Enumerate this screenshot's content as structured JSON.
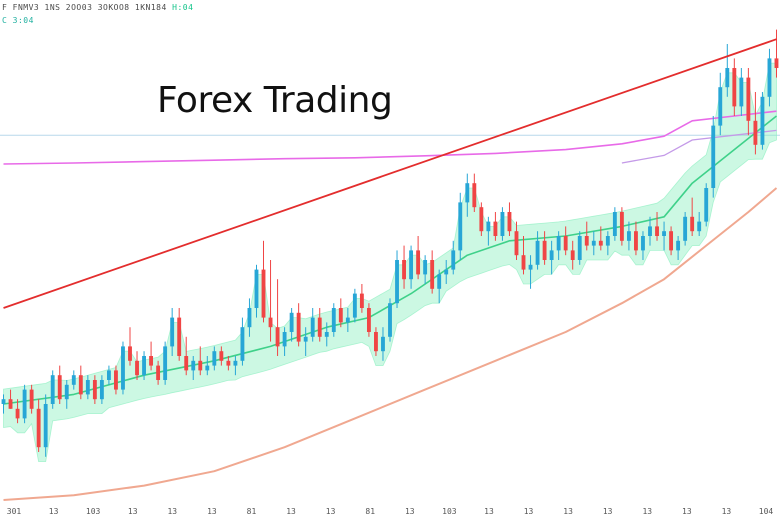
{
  "header": {
    "line1": "F FNMV3  1NS 2OO03  3OKOO8  1KN184",
    "line1_status": "H:04",
    "line2": "C  3:04"
  },
  "colors": {
    "bull": "#27a6d6",
    "bear": "#f04545",
    "trendline": "#e32d2d",
    "slow_ma": "#e86ae8",
    "mid_ma": "#c49ae8",
    "fast_ma": "#3fd18a",
    "envelope": "#8ff0c2",
    "lower_band": "#f0a890",
    "reference": "#b8d8ec"
  },
  "chart_data": {
    "type": "candlestick",
    "title": "Forex Trading",
    "xlabel": "",
    "ylabel": "",
    "x_tick_labels": [
      "301",
      "13",
      "103",
      "13",
      "13",
      "13",
      "81",
      "13",
      "13",
      "81",
      "13",
      "103",
      "13",
      "13",
      "13",
      "13",
      "13",
      "13",
      "13",
      "104"
    ],
    "ylim": [
      0,
      100
    ],
    "grid": false,
    "reference_level": 76,
    "candles": [
      [
        20,
        22,
        18,
        21
      ],
      [
        21,
        23,
        19,
        19
      ],
      [
        19,
        21,
        16,
        17
      ],
      [
        17,
        24,
        16,
        23
      ],
      [
        23,
        24,
        18,
        19
      ],
      [
        19,
        21,
        10,
        11
      ],
      [
        11,
        22,
        9,
        20
      ],
      [
        20,
        27,
        19,
        26
      ],
      [
        26,
        28,
        20,
        21
      ],
      [
        21,
        25,
        19,
        24
      ],
      [
        24,
        27,
        23,
        26
      ],
      [
        26,
        28,
        21,
        22
      ],
      [
        22,
        26,
        21,
        25
      ],
      [
        25,
        26,
        20,
        21
      ],
      [
        21,
        26,
        20,
        25
      ],
      [
        25,
        28,
        24,
        27
      ],
      [
        27,
        28,
        22,
        23
      ],
      [
        23,
        33,
        22,
        32
      ],
      [
        32,
        36,
        28,
        29
      ],
      [
        29,
        31,
        25,
        26
      ],
      [
        26,
        31,
        25,
        30
      ],
      [
        30,
        33,
        27,
        28
      ],
      [
        28,
        29,
        24,
        25
      ],
      [
        25,
        33,
        24,
        32
      ],
      [
        32,
        40,
        30,
        38
      ],
      [
        38,
        40,
        29,
        30
      ],
      [
        30,
        34,
        26,
        27
      ],
      [
        27,
        30,
        25,
        29
      ],
      [
        29,
        32,
        26,
        27
      ],
      [
        27,
        30,
        26,
        28
      ],
      [
        28,
        32,
        27,
        31
      ],
      [
        31,
        32,
        28,
        29
      ],
      [
        29,
        30,
        27,
        28
      ],
      [
        28,
        30,
        26,
        29
      ],
      [
        29,
        38,
        28,
        36
      ],
      [
        36,
        42,
        34,
        40
      ],
      [
        40,
        49,
        38,
        48
      ],
      [
        48,
        54,
        37,
        38
      ],
      [
        38,
        50,
        33,
        36
      ],
      [
        36,
        46,
        30,
        32
      ],
      [
        32,
        36,
        30,
        35
      ],
      [
        35,
        40,
        33,
        39
      ],
      [
        39,
        41,
        32,
        33
      ],
      [
        33,
        36,
        30,
        34
      ],
      [
        34,
        40,
        33,
        38
      ],
      [
        38,
        40,
        33,
        34
      ],
      [
        34,
        37,
        32,
        35
      ],
      [
        35,
        41,
        34,
        40
      ],
      [
        40,
        42,
        36,
        37
      ],
      [
        37,
        40,
        35,
        38
      ],
      [
        38,
        44,
        37,
        43
      ],
      [
        43,
        45,
        39,
        40
      ],
      [
        40,
        41,
        34,
        35
      ],
      [
        35,
        36,
        30,
        31
      ],
      [
        31,
        36,
        29,
        34
      ],
      [
        34,
        42,
        33,
        41
      ],
      [
        41,
        52,
        40,
        50
      ],
      [
        50,
        53,
        44,
        46
      ],
      [
        46,
        53,
        44,
        52
      ],
      [
        52,
        55,
        46,
        47
      ],
      [
        47,
        51,
        45,
        50
      ],
      [
        50,
        52,
        43,
        44
      ],
      [
        44,
        48,
        41,
        47
      ],
      [
        47,
        50,
        45,
        48
      ],
      [
        48,
        54,
        47,
        52
      ],
      [
        52,
        64,
        50,
        62
      ],
      [
        62,
        68,
        59,
        66
      ],
      [
        66,
        68,
        60,
        61
      ],
      [
        61,
        62,
        55,
        56
      ],
      [
        56,
        59,
        53,
        58
      ],
      [
        58,
        60,
        54,
        55
      ],
      [
        55,
        61,
        54,
        60
      ],
      [
        60,
        62,
        55,
        56
      ],
      [
        56,
        58,
        50,
        51
      ],
      [
        51,
        55,
        47,
        48
      ],
      [
        48,
        51,
        44,
        49
      ],
      [
        49,
        56,
        48,
        54
      ],
      [
        54,
        56,
        49,
        50
      ],
      [
        50,
        54,
        47,
        52
      ],
      [
        52,
        56,
        50,
        55
      ],
      [
        55,
        57,
        51,
        52
      ],
      [
        52,
        54,
        48,
        50
      ],
      [
        50,
        56,
        49,
        55
      ],
      [
        55,
        58,
        52,
        53
      ],
      [
        53,
        56,
        51,
        54
      ],
      [
        54,
        57,
        52,
        53
      ],
      [
        53,
        56,
        51,
        55
      ],
      [
        55,
        61,
        54,
        60
      ],
      [
        60,
        61,
        53,
        54
      ],
      [
        54,
        58,
        52,
        56
      ],
      [
        56,
        58,
        51,
        52
      ],
      [
        52,
        56,
        50,
        55
      ],
      [
        55,
        59,
        53,
        57
      ],
      [
        57,
        60,
        54,
        55
      ],
      [
        55,
        58,
        52,
        56
      ],
      [
        56,
        57,
        51,
        52
      ],
      [
        52,
        55,
        50,
        54
      ],
      [
        54,
        60,
        53,
        59
      ],
      [
        59,
        63,
        55,
        56
      ],
      [
        56,
        60,
        55,
        58
      ],
      [
        58,
        66,
        57,
        65
      ],
      [
        65,
        80,
        63,
        78
      ],
      [
        78,
        89,
        76,
        86
      ],
      [
        86,
        95,
        84,
        90
      ],
      [
        90,
        92,
        80,
        82
      ],
      [
        82,
        90,
        80,
        88
      ],
      [
        88,
        90,
        76,
        79
      ],
      [
        79,
        85,
        72,
        74
      ],
      [
        74,
        85,
        73,
        84
      ],
      [
        84,
        94,
        82,
        92
      ],
      [
        92,
        98,
        88,
        90
      ]
    ],
    "series": [
      {
        "name": "",
        "style": "trendline",
        "values": [
          [
            0,
            40
          ],
          [
            110,
            96
          ]
        ]
      },
      {
        "name": "",
        "style": "slow_ma",
        "values": [
          [
            0,
            70
          ],
          [
            10,
            70.2
          ],
          [
            20,
            70.5
          ],
          [
            30,
            70.8
          ],
          [
            40,
            71.1
          ],
          [
            50,
            71.3
          ],
          [
            60,
            71.7
          ],
          [
            70,
            72.2
          ],
          [
            80,
            73
          ],
          [
            88,
            74.2
          ],
          [
            94,
            75.8
          ],
          [
            98,
            79
          ],
          [
            104,
            80
          ],
          [
            110,
            81
          ]
        ]
      },
      {
        "name": "",
        "style": "fast_ma",
        "values": [
          [
            0,
            20
          ],
          [
            10,
            22
          ],
          [
            20,
            26
          ],
          [
            30,
            29
          ],
          [
            38,
            32
          ],
          [
            46,
            36
          ],
          [
            52,
            38
          ],
          [
            58,
            43
          ],
          [
            66,
            51
          ],
          [
            72,
            54
          ],
          [
            80,
            55
          ],
          [
            88,
            57
          ],
          [
            94,
            59
          ],
          [
            98,
            66
          ],
          [
            104,
            73
          ],
          [
            110,
            80
          ]
        ]
      },
      {
        "name": "",
        "style": "lower_band",
        "values": [
          [
            0,
            0
          ],
          [
            10,
            1
          ],
          [
            20,
            3
          ],
          [
            30,
            6
          ],
          [
            40,
            11
          ],
          [
            50,
            17
          ],
          [
            60,
            23
          ],
          [
            70,
            29
          ],
          [
            80,
            35
          ],
          [
            88,
            41
          ],
          [
            94,
            46
          ],
          [
            100,
            53
          ],
          [
            106,
            60
          ],
          [
            110,
            65
          ]
        ]
      }
    ]
  }
}
